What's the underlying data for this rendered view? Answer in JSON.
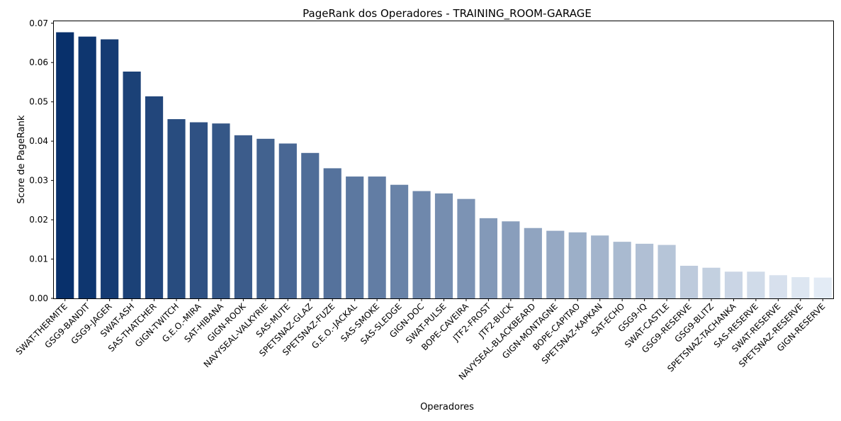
{
  "chart_data": {
    "type": "bar",
    "title": "PageRank dos Operadores - TRAINING_ROOM-GARAGE",
    "xlabel": "Operadores",
    "ylabel": "Score de PageRank",
    "ylim": [
      0,
      0.0705
    ],
    "yticks": [
      "0.00",
      "0.01",
      "0.02",
      "0.03",
      "0.04",
      "0.05",
      "0.06",
      "0.07"
    ],
    "grid": false,
    "colormap": "Blues (dark to light)",
    "categories": [
      "SWAT-THERMITE",
      "GSG9-BANDIT",
      "GSG9-JAGER",
      "SWAT-ASH",
      "SAS-THATCHER",
      "GIGN-TWITCH",
      "G.E.O.-MIRA",
      "SAT-HIBANA",
      "GIGN-ROOK",
      "NAVYSEAL-VALKYRIE",
      "SAS-MUTE",
      "SPETSNAZ-GLAZ",
      "SPETSNAZ-FUZE",
      "G.E.O.-JACKAL",
      "SAS-SMOKE",
      "SAS-SLEDGE",
      "GIGN-DOC",
      "SWAT-PULSE",
      "BOPE-CAVEIRA",
      "JTF2-FROST",
      "JTF2-BUCK",
      "NAVYSEAL-BLACKBEARD",
      "GIGN-MONTAGNE",
      "BOPE-CAPITAO",
      "SPETSNAZ-KAPKAN",
      "SAT-ECHO",
      "GSG9-IQ",
      "SWAT-CASTLE",
      "GSG9-RESERVE",
      "GSG9-BLITZ",
      "SPETSNAZ-TACHANKA",
      "SAS-RESERVE",
      "SWAT-RESERVE",
      "SPETSNAZ-RESERVE",
      "GIGN-RESERVE"
    ],
    "values": [
      0.0677,
      0.0666,
      0.0659,
      0.0577,
      0.0514,
      0.0456,
      0.0448,
      0.0445,
      0.0415,
      0.0406,
      0.0394,
      0.037,
      0.0331,
      0.031,
      0.031,
      0.0289,
      0.0273,
      0.0267,
      0.0253,
      0.0204,
      0.0196,
      0.0179,
      0.0172,
      0.0168,
      0.016,
      0.0144,
      0.0139,
      0.0136,
      0.0083,
      0.0078,
      0.0068,
      0.0068,
      0.0059,
      0.0054,
      0.0053
    ]
  }
}
